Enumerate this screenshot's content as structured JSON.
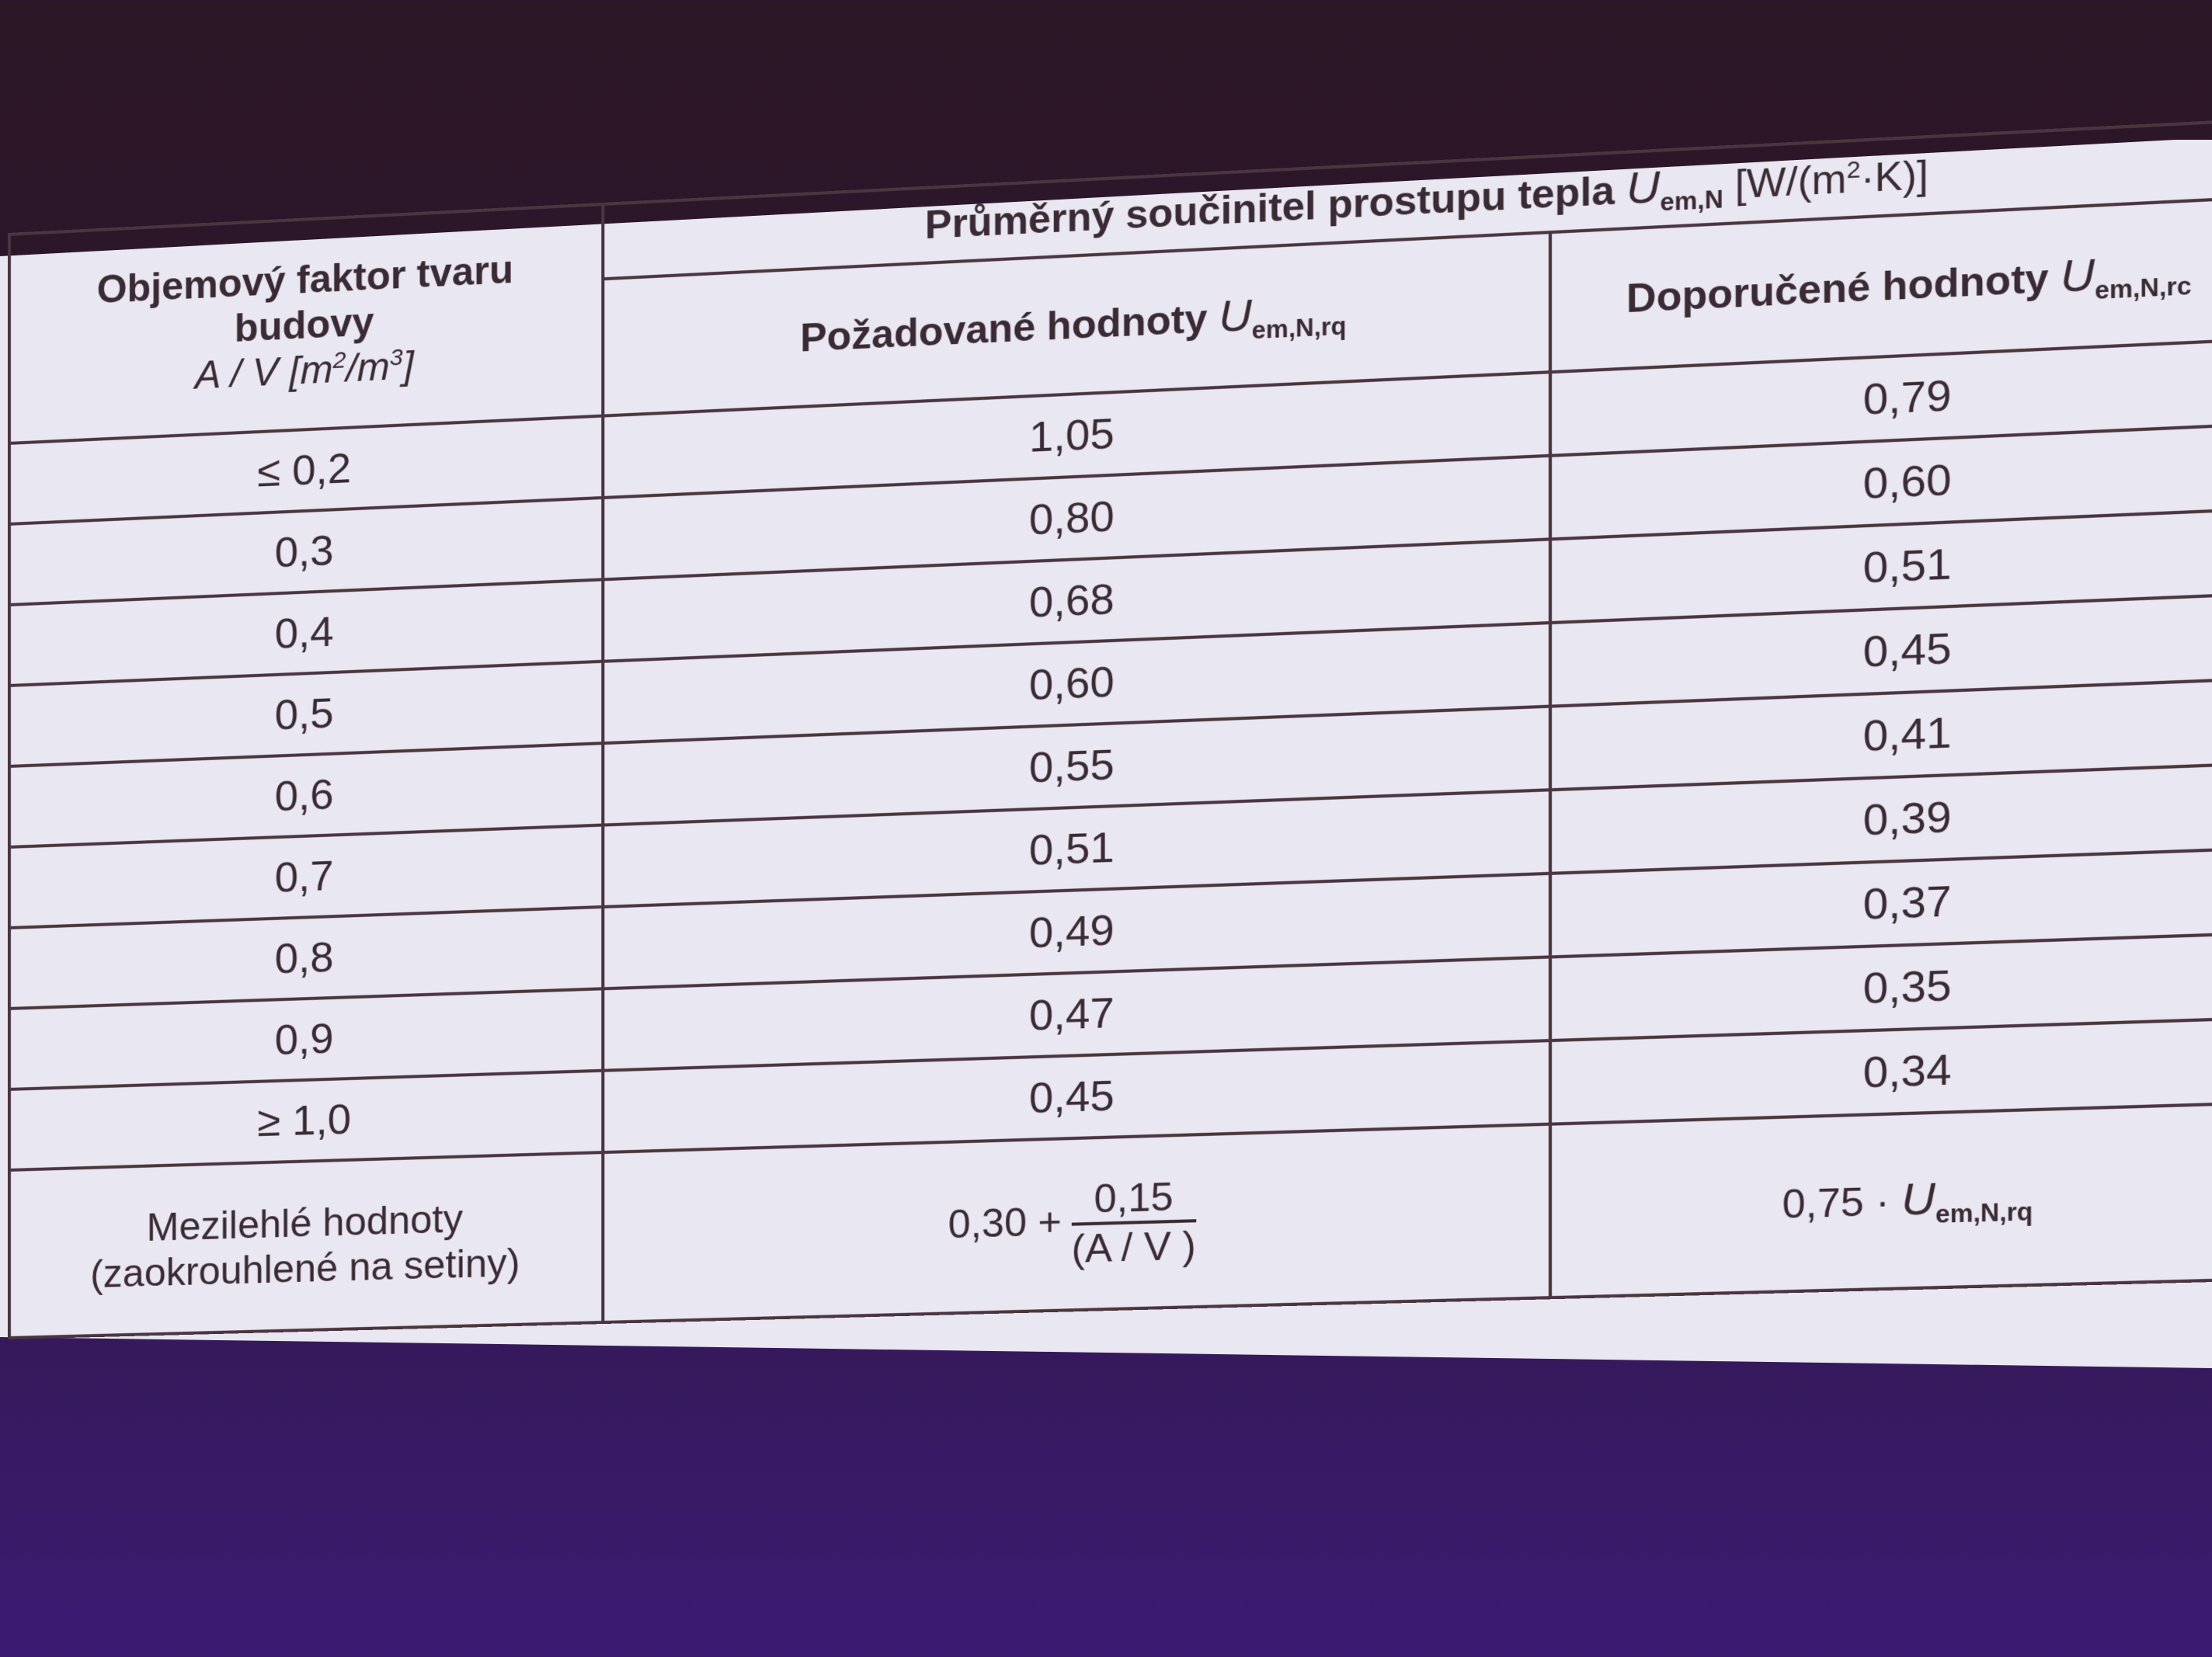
{
  "table": {
    "header": {
      "col1_line1": "Objemový faktor tvaru",
      "col1_line2": "budovy",
      "col1_unit_prefix": "A / V [m",
      "col1_unit_sup1": "2",
      "col1_unit_mid": "/m",
      "col1_unit_sup2": "3",
      "col1_unit_suffix": "]",
      "group_title": "Průměrný součinitel prostupu tepla ",
      "group_symbol": "U",
      "group_sub": "em,N",
      "group_unit_prefix": " [W/(m",
      "group_unit_sup": "2",
      "group_unit_suffix": "·K)]",
      "col2_label": "Požadované hodnoty ",
      "col2_symbol": "U",
      "col2_sub": "em,N,rq",
      "col3_label": "Doporučené hodnoty ",
      "col3_symbol": "U",
      "col3_sub": "em,N,rc"
    },
    "rows": [
      {
        "av": "≤ 0,2",
        "required": "1,05",
        "recommended": "0,79"
      },
      {
        "av": "0,3",
        "required": "0,80",
        "recommended": "0,60"
      },
      {
        "av": "0,4",
        "required": "0,68",
        "recommended": "0,51"
      },
      {
        "av": "0,5",
        "required": "0,60",
        "recommended": "0,45"
      },
      {
        "av": "0,6",
        "required": "0,55",
        "recommended": "0,41"
      },
      {
        "av": "0,7",
        "required": "0,51",
        "recommended": "0,39"
      },
      {
        "av": "0,8",
        "required": "0,49",
        "recommended": "0,37"
      },
      {
        "av": "0,9",
        "required": "0,47",
        "recommended": "0,35"
      },
      {
        "av": "≥ 1,0",
        "required": "0,45",
        "recommended": "0,34"
      }
    ],
    "footer": {
      "label_line1": "Mezilehlé hodnoty",
      "label_line2": "(zaokrouhlené na setiny)",
      "formula_prefix": "0,30 +",
      "formula_numerator": "0,15",
      "formula_denominator": "(A / V )",
      "recommended_prefix": "0,75 · ",
      "recommended_symbol": "U",
      "recommended_sub": "em,N,rq"
    }
  }
}
